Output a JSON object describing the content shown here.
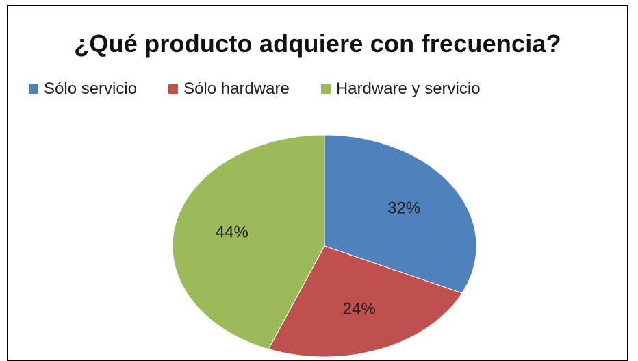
{
  "chart_data": {
    "type": "pie",
    "title": "¿Qué producto adquiere con frecuencia?",
    "categories": [
      "Sólo servicio",
      "Sólo hardware",
      "Hardware y servicio"
    ],
    "values": [
      32,
      24,
      44
    ],
    "labels": [
      "32%",
      "24%",
      "44%"
    ],
    "colors": [
      "#4F81BD",
      "#C0504D",
      "#9BBB59"
    ],
    "legend_position": "top",
    "start_angle": "12 o'clock",
    "direction": "clockwise"
  }
}
